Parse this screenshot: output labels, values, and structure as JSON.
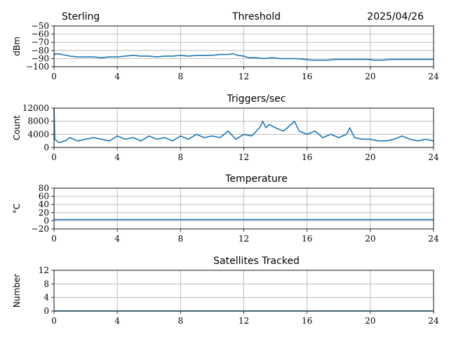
{
  "header": {
    "left": "Sterling",
    "right": "2025/04/26"
  },
  "chart_data": [
    {
      "type": "line",
      "title": "Threshold",
      "ylabel": "dBm",
      "xlim": [
        0,
        24
      ],
      "ylim": [
        -100,
        -50
      ],
      "xticks": [
        "0",
        "4",
        "8",
        "12",
        "16",
        "20",
        "24"
      ],
      "yticks": [
        "−50",
        "−60",
        "−70",
        "−80",
        "−90",
        "−100"
      ],
      "grid": true,
      "series": [
        {
          "color": "#1f77b4",
          "x": [
            0,
            0.1,
            0.5,
            1,
            1.5,
            2,
            2.5,
            3,
            3.5,
            4,
            4.5,
            5,
            5.5,
            6,
            6.5,
            7,
            7.5,
            8,
            8.5,
            9,
            9.5,
            10,
            10.5,
            11,
            11.3,
            11.6,
            12,
            12.3,
            12.8,
            13.3,
            13.8,
            14.3,
            14.8,
            15.3,
            15.8,
            16.3,
            16.8,
            17.3,
            17.8,
            18.3,
            18.8,
            19.3,
            19.8,
            20.3,
            20.8,
            21.3,
            21.8,
            22.3,
            22.8,
            23.3,
            24
          ],
          "y": [
            -86,
            -84,
            -85,
            -87,
            -88,
            -88,
            -88,
            -89,
            -88,
            -88,
            -87,
            -86,
            -87,
            -87,
            -88,
            -87,
            -87,
            -86,
            -87,
            -86,
            -86,
            -86,
            -85,
            -85,
            -84,
            -86,
            -87,
            -89,
            -89,
            -90,
            -89,
            -90,
            -90,
            -90,
            -91,
            -92,
            -92,
            -92,
            -91,
            -91,
            -91,
            -91,
            -91,
            -92,
            -92,
            -91,
            -91,
            -91,
            -91,
            -91,
            -91
          ]
        }
      ]
    },
    {
      "type": "line",
      "title": "Triggers/sec",
      "ylabel": "Count",
      "xlim": [
        0,
        24
      ],
      "ylim": [
        0,
        12000
      ],
      "xticks": [
        "0",
        "4",
        "8",
        "12",
        "16",
        "20",
        "24"
      ],
      "yticks": [
        "12000",
        "8000",
        "4000",
        "0"
      ],
      "grid": true,
      "series": [
        {
          "color": "#1f77b4",
          "x": [
            0,
            0.05,
            0.3,
            0.7,
            1,
            1.5,
            2,
            2.5,
            3,
            3.5,
            4,
            4.5,
            5,
            5.5,
            6,
            6.5,
            7,
            7.5,
            8,
            8.5,
            9,
            9.5,
            10,
            10.5,
            11,
            11.5,
            12,
            12.5,
            13,
            13.2,
            13.4,
            13.6,
            14,
            14.5,
            15,
            15.2,
            15.5,
            16,
            16.5,
            17,
            17.5,
            18,
            18.5,
            18.7,
            19,
            19.5,
            20,
            20.5,
            21,
            21.5,
            22,
            22.5,
            23,
            23.5,
            24
          ],
          "y": [
            12000,
            2500,
            1500,
            2000,
            3000,
            2000,
            2500,
            3000,
            2500,
            2000,
            3500,
            2500,
            3000,
            2000,
            3500,
            2500,
            3000,
            2000,
            3500,
            2500,
            4000,
            3000,
            3500,
            3000,
            5000,
            2500,
            4000,
            3500,
            6000,
            8000,
            6000,
            7000,
            6000,
            5000,
            7000,
            8000,
            5000,
            4000,
            5000,
            3000,
            4000,
            3000,
            4000,
            6000,
            3000,
            2500,
            2500,
            2000,
            2000,
            2500,
            3500,
            2500,
            2000,
            2500,
            2000
          ]
        }
      ]
    },
    {
      "type": "line",
      "title": "Temperature",
      "ylabel": "°C",
      "xlim": [
        0,
        24
      ],
      "ylim": [
        -20,
        80
      ],
      "xticks": [
        "0",
        "4",
        "8",
        "12",
        "16",
        "20",
        "24"
      ],
      "yticks": [
        "80",
        "60",
        "40",
        "20",
        "0",
        "−20"
      ],
      "grid": true,
      "series": [
        {
          "color": "#1f77b4",
          "x": [
            0,
            24
          ],
          "y": [
            3,
            3
          ]
        }
      ]
    },
    {
      "type": "line",
      "title": "Satellites Tracked",
      "ylabel": "Number",
      "xlim": [
        0,
        24
      ],
      "ylim": [
        0,
        12
      ],
      "xticks": [
        "0",
        "4",
        "8",
        "12",
        "16",
        "20",
        "24"
      ],
      "yticks": [
        "12",
        "8",
        "4",
        "0"
      ],
      "grid": true,
      "series": [
        {
          "color": "#1f77b4",
          "x": [
            0,
            24
          ],
          "y": [
            0,
            0
          ]
        }
      ]
    }
  ]
}
